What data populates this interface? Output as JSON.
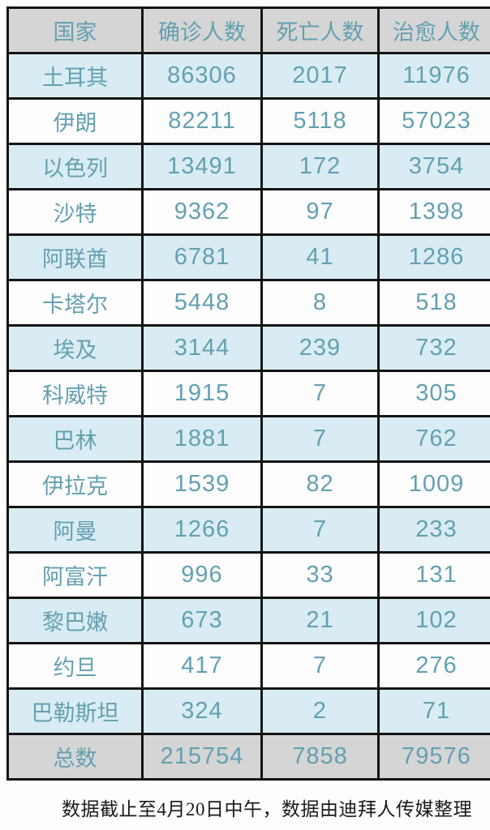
{
  "chart_data": {
    "type": "table",
    "columns": [
      "国家",
      "确诊人数",
      "死亡人数",
      "治愈人数"
    ],
    "rows": [
      [
        "土耳其",
        "86306",
        "2017",
        "11976"
      ],
      [
        "伊朗",
        "82211",
        "5118",
        "57023"
      ],
      [
        "以色列",
        "13491",
        "172",
        "3754"
      ],
      [
        "沙特",
        "9362",
        "97",
        "1398"
      ],
      [
        "阿联酋",
        "6781",
        "41",
        "1286"
      ],
      [
        "卡塔尔",
        "5448",
        "8",
        "518"
      ],
      [
        "埃及",
        "3144",
        "239",
        "732"
      ],
      [
        "科威特",
        "1915",
        "7",
        "305"
      ],
      [
        "巴林",
        "1881",
        "7",
        "762"
      ],
      [
        "伊拉克",
        "1539",
        "82",
        "1009"
      ],
      [
        "阿曼",
        "1266",
        "7",
        "233"
      ],
      [
        "阿富汗",
        "996",
        "33",
        "131"
      ],
      [
        "黎巴嫩",
        "673",
        "21",
        "102"
      ],
      [
        "约旦",
        "417",
        "7",
        "276"
      ],
      [
        "巴勒斯坦",
        "324",
        "2",
        "71"
      ]
    ],
    "total_row": [
      "总数",
      "215754",
      "7858",
      "79576"
    ],
    "layout": {
      "grid": "on",
      "header_background": "#d5d5d5",
      "total_background": "#d5d5d5",
      "alt_row_background": "#d9ecf3",
      "row_background": "#fdfdfd",
      "text_color": "#64a0b1",
      "border_color": "#141414"
    }
  },
  "footer": {
    "note": "数据截止至4月20日中午，数据由迪拜人传媒整理"
  }
}
